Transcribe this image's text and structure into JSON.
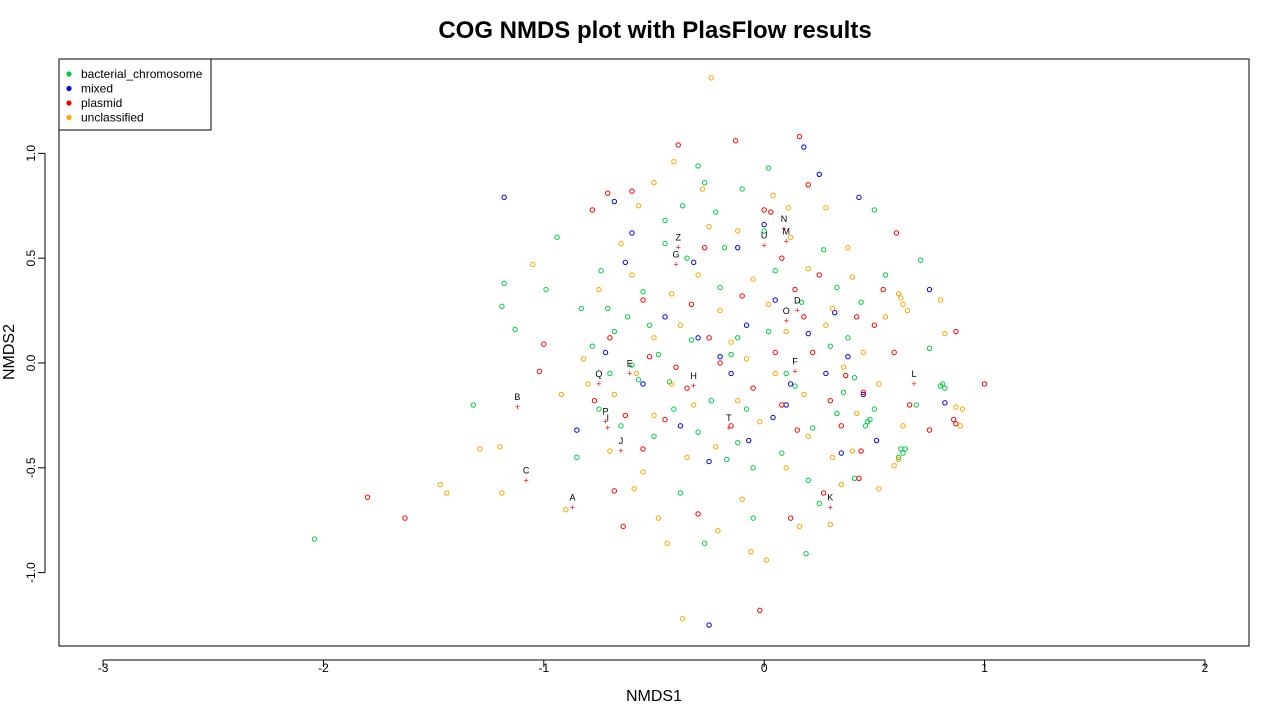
{
  "chart_data": {
    "type": "scatter",
    "title": "COG NMDS plot with PlasFlow results",
    "xlabel": "NMDS1",
    "ylabel": "NMDS2",
    "xlim": [
      -3.2,
      2.2
    ],
    "ylim": [
      -1.35,
      1.45
    ],
    "xticks": [
      -3,
      -2,
      -1,
      0,
      1,
      2
    ],
    "yticks": [
      -1.0,
      -0.5,
      0.0,
      0.5,
      1.0
    ],
    "xtick_labels": [
      "-3",
      "-2",
      "-1",
      "0",
      "1",
      "2"
    ],
    "ytick_labels": [
      "-1.0",
      "-0.5",
      "0.0",
      "0.5",
      "1.0"
    ],
    "grid": false,
    "legend_position": "top-left",
    "legend": [
      {
        "label": "bacterial_chromosome",
        "color": "#00cc44"
      },
      {
        "label": "mixed",
        "color": "#0000ee"
      },
      {
        "label": "plasmid",
        "color": "#ff0000"
      },
      {
        "label": "unclassified",
        "color": "#ffa500"
      }
    ],
    "series": [
      {
        "name": "bacterial_chromosome",
        "color": "#00cc44",
        "points": [
          [
            -2.04,
            -0.84
          ],
          [
            -1.18,
            0.38
          ],
          [
            -1.19,
            0.27
          ],
          [
            -1.13,
            0.16
          ],
          [
            -1.32,
            -0.2
          ],
          [
            -0.94,
            0.6
          ],
          [
            -0.99,
            0.35
          ],
          [
            -0.83,
            0.26
          ],
          [
            -0.85,
            -0.45
          ],
          [
            -0.78,
            0.08
          ],
          [
            -0.75,
            -0.22
          ],
          [
            -0.71,
            0.26
          ],
          [
            -0.7,
            -0.05
          ],
          [
            -0.74,
            0.44
          ],
          [
            -0.68,
            0.15
          ],
          [
            -0.62,
            0.22
          ],
          [
            -0.55,
            0.34
          ],
          [
            -0.52,
            0.18
          ],
          [
            -0.45,
            0.68
          ],
          [
            -0.41,
            -0.22
          ],
          [
            -0.37,
            0.75
          ],
          [
            -0.3,
            0.94
          ],
          [
            -0.27,
            0.86
          ],
          [
            -0.22,
            0.72
          ],
          [
            -0.18,
            0.55
          ],
          [
            -0.1,
            0.83
          ],
          [
            0.02,
            0.93
          ],
          [
            -0.38,
            -0.62
          ],
          [
            -0.27,
            -0.86
          ],
          [
            -0.17,
            -0.46
          ],
          [
            -0.12,
            -0.38
          ],
          [
            -0.05,
            -0.74
          ],
          [
            0.08,
            -0.43
          ],
          [
            0.19,
            -0.91
          ],
          [
            0.25,
            -0.67
          ],
          [
            0.33,
            -0.24
          ],
          [
            0.38,
            0.12
          ],
          [
            0.44,
            0.29
          ],
          [
            0.5,
            0.73
          ],
          [
            0.55,
            0.42
          ],
          [
            0.62,
            -0.41
          ],
          [
            0.63,
            -0.43
          ],
          [
            0.64,
            -0.41
          ],
          [
            0.61,
            -0.45
          ],
          [
            0.69,
            -0.2
          ],
          [
            0.75,
            0.07
          ],
          [
            0.81,
            -0.1
          ],
          [
            0.82,
            -0.12
          ],
          [
            0.8,
            -0.11
          ],
          [
            0.71,
            0.49
          ],
          [
            0.48,
            -0.27
          ],
          [
            0.46,
            -0.3
          ],
          [
            0.47,
            -0.28
          ],
          [
            -0.57,
            -0.08
          ],
          [
            -0.6,
            -0.01
          ],
          [
            -0.48,
            0.04
          ],
          [
            -0.43,
            -0.09
          ],
          [
            -0.33,
            0.11
          ],
          [
            -0.24,
            -0.18
          ],
          [
            -0.15,
            0.04
          ],
          [
            -0.08,
            -0.22
          ],
          [
            0.02,
            0.15
          ],
          [
            0.1,
            -0.05
          ],
          [
            0.17,
            0.29
          ],
          [
            0.22,
            -0.31
          ],
          [
            0.3,
            0.08
          ],
          [
            0.36,
            -0.14
          ],
          [
            0.41,
            -0.07
          ],
          [
            0.27,
            0.54
          ],
          [
            0.05,
            0.44
          ],
          [
            -0.2,
            0.36
          ],
          [
            -0.35,
            0.5
          ],
          [
            -0.5,
            -0.35
          ],
          [
            -0.65,
            -0.3
          ],
          [
            -0.3,
            -0.33
          ],
          [
            0.14,
            -0.11
          ],
          [
            0.41,
            -0.55
          ],
          [
            0.5,
            -0.22
          ],
          [
            -0.45,
            0.57
          ],
          [
            -0.12,
            0.12
          ],
          [
            0.0,
            0.63
          ],
          [
            0.33,
            0.36
          ],
          [
            0.2,
            -0.56
          ],
          [
            -0.05,
            -0.5
          ]
        ]
      },
      {
        "name": "mixed",
        "color": "#0000ee",
        "points": [
          [
            -1.18,
            0.79
          ],
          [
            -0.68,
            0.77
          ],
          [
            -0.6,
            0.62
          ],
          [
            -0.32,
            0.48
          ],
          [
            -0.12,
            0.55
          ],
          [
            0.0,
            0.66
          ],
          [
            0.18,
            1.03
          ],
          [
            0.25,
            0.9
          ],
          [
            0.43,
            0.79
          ],
          [
            0.75,
            0.35
          ],
          [
            0.82,
            -0.19
          ],
          [
            0.51,
            -0.37
          ],
          [
            0.35,
            -0.43
          ],
          [
            0.1,
            -0.2
          ],
          [
            -0.07,
            -0.37
          ],
          [
            -0.25,
            -0.47
          ],
          [
            -0.38,
            -0.3
          ],
          [
            -0.55,
            -0.1
          ],
          [
            -0.72,
            0.05
          ],
          [
            -0.85,
            -0.32
          ],
          [
            -0.25,
            -1.25
          ],
          [
            -0.2,
            0.03
          ],
          [
            -0.08,
            0.18
          ],
          [
            0.05,
            0.3
          ],
          [
            0.12,
            -0.1
          ],
          [
            0.2,
            0.14
          ],
          [
            0.28,
            -0.05
          ],
          [
            0.32,
            0.24
          ],
          [
            -0.45,
            0.22
          ],
          [
            -0.63,
            0.48
          ],
          [
            -0.15,
            -0.05
          ],
          [
            0.04,
            -0.26
          ],
          [
            0.38,
            0.03
          ],
          [
            0.45,
            -0.15
          ],
          [
            -0.3,
            0.12
          ]
        ]
      },
      {
        "name": "plasmid",
        "color": "#ff0000",
        "points": [
          [
            -1.8,
            -0.64
          ],
          [
            -1.63,
            -0.74
          ],
          [
            -1.0,
            0.09
          ],
          [
            -1.02,
            -0.04
          ],
          [
            -0.78,
            0.73
          ],
          [
            -0.71,
            0.81
          ],
          [
            -0.68,
            -0.61
          ],
          [
            -0.64,
            -0.78
          ],
          [
            -0.6,
            0.82
          ],
          [
            -0.39,
            1.04
          ],
          [
            -0.13,
            1.06
          ],
          [
            0.16,
            1.08
          ],
          [
            0.2,
            0.85
          ],
          [
            0.6,
            0.62
          ],
          [
            0.66,
            -0.2
          ],
          [
            0.75,
            -0.32
          ],
          [
            0.86,
            -0.27
          ],
          [
            0.87,
            -0.29
          ],
          [
            0.87,
            0.15
          ],
          [
            1.0,
            -0.1
          ],
          [
            0.43,
            -0.55
          ],
          [
            0.44,
            -0.42
          ],
          [
            0.27,
            -0.62
          ],
          [
            0.12,
            -0.74
          ],
          [
            -0.02,
            -1.18
          ],
          [
            -0.3,
            -0.72
          ],
          [
            -0.45,
            -0.27
          ],
          [
            -0.55,
            -0.41
          ],
          [
            -0.63,
            -0.25
          ],
          [
            -0.77,
            -0.18
          ],
          [
            -0.52,
            0.03
          ],
          [
            -0.4,
            -0.02
          ],
          [
            -0.33,
            0.28
          ],
          [
            -0.2,
            0.0
          ],
          [
            -0.1,
            0.32
          ],
          [
            0.0,
            0.73
          ],
          [
            0.03,
            0.72
          ],
          [
            0.08,
            0.5
          ],
          [
            0.14,
            0.35
          ],
          [
            0.22,
            0.05
          ],
          [
            0.3,
            -0.18
          ],
          [
            0.37,
            -0.06
          ],
          [
            0.42,
            0.22
          ],
          [
            0.45,
            -0.14
          ],
          [
            0.54,
            0.35
          ],
          [
            0.59,
            0.05
          ],
          [
            -0.15,
            -0.3
          ],
          [
            -0.05,
            -0.12
          ],
          [
            0.05,
            0.05
          ],
          [
            0.15,
            -0.32
          ],
          [
            0.25,
            0.42
          ],
          [
            -0.27,
            0.55
          ],
          [
            -0.55,
            0.3
          ],
          [
            -0.7,
            0.12
          ],
          [
            0.35,
            -0.3
          ],
          [
            0.5,
            0.18
          ],
          [
            -0.35,
            -0.12
          ],
          [
            -0.25,
            0.12
          ],
          [
            0.18,
            0.22
          ],
          [
            0.08,
            -0.2
          ]
        ]
      },
      {
        "name": "unclassified",
        "color": "#ffa500",
        "points": [
          [
            -0.24,
            1.36
          ],
          [
            -1.05,
            0.47
          ],
          [
            -1.29,
            -0.41
          ],
          [
            -1.2,
            -0.4
          ],
          [
            -1.44,
            -0.62
          ],
          [
            -1.47,
            -0.58
          ],
          [
            -1.19,
            -0.62
          ],
          [
            -0.9,
            -0.7
          ],
          [
            -0.59,
            -0.6
          ],
          [
            -0.48,
            -0.74
          ],
          [
            -0.44,
            -0.86
          ],
          [
            -0.37,
            -1.22
          ],
          [
            -0.21,
            -0.8
          ],
          [
            -0.06,
            -0.9
          ],
          [
            0.01,
            -0.94
          ],
          [
            0.16,
            -0.78
          ],
          [
            0.3,
            -0.77
          ],
          [
            0.4,
            -0.42
          ],
          [
            0.63,
            -0.3
          ],
          [
            0.63,
            0.28
          ],
          [
            0.65,
            0.25
          ],
          [
            0.62,
            0.31
          ],
          [
            0.61,
            0.33
          ],
          [
            0.8,
            0.3
          ],
          [
            0.82,
            0.14
          ],
          [
            0.87,
            -0.21
          ],
          [
            0.89,
            -0.3
          ],
          [
            0.9,
            -0.22
          ],
          [
            -0.92,
            -0.15
          ],
          [
            -0.82,
            0.02
          ],
          [
            -0.75,
            0.35
          ],
          [
            -0.65,
            0.57
          ],
          [
            -0.57,
            0.75
          ],
          [
            -0.5,
            0.86
          ],
          [
            -0.41,
            0.96
          ],
          [
            -0.28,
            0.83
          ],
          [
            -0.12,
            0.63
          ],
          [
            0.04,
            0.8
          ],
          [
            0.11,
            0.74
          ],
          [
            0.28,
            0.74
          ],
          [
            0.31,
            0.26
          ],
          [
            0.4,
            0.41
          ],
          [
            0.55,
            0.22
          ],
          [
            0.61,
            -0.46
          ],
          [
            0.59,
            -0.49
          ],
          [
            0.52,
            -0.6
          ],
          [
            0.35,
            -0.58
          ],
          [
            -0.1,
            -0.65
          ],
          [
            -0.35,
            -0.45
          ],
          [
            -0.58,
            -0.05
          ],
          [
            -0.68,
            -0.15
          ],
          [
            -0.5,
            0.12
          ],
          [
            -0.42,
            0.33
          ],
          [
            -0.3,
            0.42
          ],
          [
            -0.2,
            0.25
          ],
          [
            -0.15,
            0.1
          ],
          [
            -0.05,
            0.4
          ],
          [
            0.02,
            0.28
          ],
          [
            0.1,
            0.15
          ],
          [
            0.2,
            0.45
          ],
          [
            0.28,
            0.18
          ],
          [
            0.36,
            -0.02
          ],
          [
            0.42,
            -0.24
          ],
          [
            0.31,
            -0.45
          ],
          [
            0.2,
            -0.35
          ],
          [
            0.1,
            -0.5
          ],
          [
            -0.02,
            -0.28
          ],
          [
            -0.12,
            -0.18
          ],
          [
            -0.22,
            -0.4
          ],
          [
            -0.32,
            -0.2
          ],
          [
            -0.42,
            -0.1
          ],
          [
            -0.5,
            -0.25
          ],
          [
            -0.6,
            0.42
          ],
          [
            -0.7,
            -0.42
          ],
          [
            -0.8,
            -0.1
          ],
          [
            0.12,
            0.6
          ],
          [
            -0.25,
            0.65
          ],
          [
            0.45,
            0.05
          ],
          [
            0.52,
            -0.1
          ],
          [
            -0.38,
            0.18
          ],
          [
            0.05,
            -0.05
          ],
          [
            -0.08,
            0.02
          ],
          [
            0.18,
            -0.15
          ],
          [
            0.38,
            0.55
          ],
          [
            -0.55,
            -0.52
          ]
        ]
      }
    ],
    "annotations": [
      {
        "label": "N",
        "x": 0.09,
        "y": 0.64,
        "marker": "+"
      },
      {
        "label": "Z",
        "x": -0.39,
        "y": 0.55,
        "marker": "+"
      },
      {
        "label": "U",
        "x": 0.0,
        "y": 0.56,
        "marker": "+"
      },
      {
        "label": "M",
        "x": 0.1,
        "y": 0.58,
        "marker": "+"
      },
      {
        "label": "G",
        "x": -0.4,
        "y": 0.47,
        "marker": "+"
      },
      {
        "label": "D",
        "x": 0.15,
        "y": 0.25,
        "marker": "+"
      },
      {
        "label": "O",
        "x": 0.1,
        "y": 0.2,
        "marker": "+"
      },
      {
        "label": "E",
        "x": -0.61,
        "y": -0.05,
        "marker": "+"
      },
      {
        "label": "Q",
        "x": -0.75,
        "y": -0.1,
        "marker": "+"
      },
      {
        "label": "H",
        "x": -0.32,
        "y": -0.11,
        "marker": "+"
      },
      {
        "label": "F",
        "x": 0.14,
        "y": -0.04,
        "marker": "+"
      },
      {
        "label": "L",
        "x": 0.68,
        "y": -0.1,
        "marker": "+"
      },
      {
        "label": "B",
        "x": -1.12,
        "y": -0.21,
        "marker": "+"
      },
      {
        "label": "P",
        "x": -0.72,
        "y": -0.28,
        "marker": "+"
      },
      {
        "label": "I",
        "x": -0.71,
        "y": -0.31,
        "marker": "+"
      },
      {
        "label": "T",
        "x": -0.16,
        "y": -0.31,
        "marker": "+"
      },
      {
        "label": "J",
        "x": -0.65,
        "y": -0.42,
        "marker": "+"
      },
      {
        "label": "C",
        "x": -1.08,
        "y": -0.56,
        "marker": "+"
      },
      {
        "label": "A",
        "x": -0.87,
        "y": -0.69,
        "marker": "+"
      },
      {
        "label": "K",
        "x": 0.3,
        "y": -0.69,
        "marker": "+"
      }
    ]
  }
}
